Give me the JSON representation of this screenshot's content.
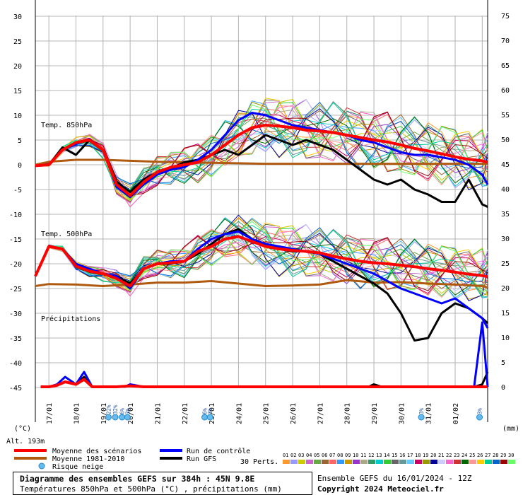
{
  "chart_data": {
    "type": "line",
    "title": "Diagramme des ensembles GEFS sur 384h : 45N 9.8E",
    "subtitle": "Températures 850hPa et 500hPa (°C) , précipitations (mm)",
    "run_info": "Ensemble GEFS du 16/01/2024 - 12Z",
    "copyright": "Copyright 2024 Meteociel.fr",
    "altitude": "Alt. 193m",
    "left_unit": "(°C)",
    "right_unit": "(mm)",
    "left_ticks": [
      "30",
      "25",
      "20",
      "15",
      "10",
      "5",
      "0",
      "-5",
      "-10",
      "-15",
      "-20",
      "-25",
      "-30",
      "-35",
      "-40",
      "-45"
    ],
    "right_ticks": [
      "75",
      "70",
      "65",
      "60",
      "55",
      "50",
      "45",
      "40",
      "35",
      "30",
      "25",
      "20",
      "15",
      "10",
      "5",
      "0"
    ],
    "x_ticks": [
      "17/01",
      "18/01",
      "19/01",
      "20/01",
      "21/01",
      "22/01",
      "23/01",
      "24/01",
      "25/01",
      "26/01",
      "27/01",
      "28/01",
      "29/01",
      "30/01",
      "31/01",
      "01/02"
    ],
    "panel_labels": [
      "Temp. 850hPa",
      "Temp. 500hPa",
      "Précipitations"
    ],
    "snow_risk": [
      {
        "x": 19.2,
        "label": "22%"
      },
      {
        "x": 19.45,
        "label": "32%"
      },
      {
        "x": 19.7,
        "label": "6%"
      },
      {
        "x": 19.9,
        "label": "3%"
      },
      {
        "x": 22.75,
        "label": "6%"
      },
      {
        "x": 22.95,
        "label": "3%"
      },
      {
        "x": 30.75,
        "label": "3%"
      },
      {
        "x": 32.9,
        "label": "3%"
      }
    ],
    "legend": {
      "mean_scenarios": "Moyenne des scénarios",
      "mean_1981_2010": "Moyenne 1981-2010",
      "control_run": "Run de contrôle",
      "gfs_run": "Run GFS",
      "snow_risk": "Risque neige",
      "perts_label": "30 Perts.",
      "pert_codes": [
        "01",
        "02",
        "03",
        "04",
        "05",
        "06",
        "07",
        "08",
        "09",
        "10",
        "11",
        "12",
        "13",
        "14",
        "15",
        "16",
        "17",
        "18",
        "19",
        "20",
        "21",
        "22",
        "23",
        "24",
        "25",
        "26",
        "27",
        "28",
        "29",
        "30"
      ]
    },
    "colors": {
      "mean": "#ff0000",
      "climatology": "#b05a10",
      "control": "#0000ff",
      "gfs": "#000000",
      "grid": "#b4b4b4",
      "perts": [
        "#ff9933",
        "#9999ff",
        "#cccc00",
        "#cc66cc",
        "#66aa44",
        "#996633",
        "#ff6666",
        "#3399ff",
        "#cc9900",
        "#9933cc",
        "#aaaa88",
        "#339966",
        "#00cccc",
        "#33cc33",
        "#666666",
        "#669999",
        "#66ccff",
        "#cc0066",
        "#999900",
        "#000099",
        "#ccccff",
        "#ff66cc",
        "#cc3333",
        "#006600",
        "#ff9999",
        "#ffcc00",
        "#00cc99",
        "#0066cc",
        "#990000",
        "#66ff66"
      ]
    },
    "xlim": [
      16.5,
      33.2
    ],
    "ylim": [
      -45,
      30
    ],
    "series": [
      {
        "name": "Moyenne des scénarios",
        "panel": "850",
        "x": [
          16.5,
          17,
          17.5,
          18,
          18.5,
          19,
          19.5,
          20,
          20.5,
          21,
          21.5,
          22,
          22.5,
          23,
          23.5,
          24,
          24.5,
          25,
          25.5,
          26,
          26.5,
          27,
          27.5,
          28,
          28.5,
          29,
          29.5,
          30,
          30.5,
          31,
          31.5,
          32,
          32.5,
          33,
          33.2
        ],
        "y": [
          -0.2,
          0,
          3,
          4.5,
          5,
          3,
          -4,
          -6.2,
          -3.5,
          -1.5,
          -0.5,
          0,
          0.5,
          2,
          4,
          6,
          7.5,
          8,
          7.8,
          7.5,
          7,
          6.8,
          6.5,
          6,
          5.5,
          5,
          4.6,
          4,
          3.3,
          2.8,
          2.2,
          1.6,
          1.1,
          0.8,
          0.5
        ]
      },
      {
        "name": "Moyenne 1981-2010",
        "panel": "850",
        "x": [
          16.5,
          17,
          18,
          19,
          20,
          21,
          22,
          23,
          24,
          25,
          26,
          27,
          28,
          29,
          30,
          31,
          32,
          33,
          33.2
        ],
        "y": [
          0,
          0.6,
          1,
          1,
          0.8,
          0.6,
          0.5,
          0.4,
          0.3,
          0.2,
          0.2,
          0.2,
          0.2,
          0.2,
          0.2,
          0.2,
          0.2,
          0.2,
          0.2
        ]
      },
      {
        "name": "Run de contrôle",
        "panel": "850",
        "x": [
          16.5,
          17,
          17.5,
          18,
          18.5,
          19,
          19.5,
          20,
          20.5,
          21,
          21.5,
          22,
          22.5,
          23,
          23.5,
          24,
          24.5,
          25,
          25.5,
          26,
          26.5,
          27,
          27.5,
          28,
          28.5,
          29,
          29.5,
          30,
          30.5,
          31,
          31.5,
          32,
          32.5,
          33,
          33.2
        ],
        "y": [
          -0.2,
          0,
          3,
          4.2,
          5.2,
          3,
          -4.5,
          -6.5,
          -4,
          -2,
          -1,
          -0.5,
          1,
          3,
          6,
          9,
          10.5,
          10,
          9,
          8,
          7.5,
          7,
          6.5,
          6,
          5,
          4.5,
          3.5,
          2.5,
          2,
          2,
          1.5,
          1,
          0,
          -2,
          -4
        ]
      },
      {
        "name": "Run GFS",
        "panel": "850",
        "x": [
          16.5,
          17,
          17.5,
          18,
          18.5,
          19,
          19.5,
          20,
          20.5,
          21,
          21.5,
          22,
          22.5,
          23,
          23.5,
          24,
          24.5,
          25,
          25.5,
          26,
          26.5,
          27,
          27.5,
          28,
          28.5,
          29,
          29.5,
          30,
          30.5,
          31,
          31.5,
          32,
          32.5,
          33,
          33.2
        ],
        "y": [
          -0.2,
          0,
          3.5,
          2,
          5,
          3,
          -3.5,
          -5.5,
          -3,
          -1.5,
          -0.8,
          0.5,
          1,
          2,
          3,
          2,
          4,
          6,
          5,
          4,
          5,
          4,
          3,
          1,
          -1,
          -3,
          -4,
          -3,
          -5,
          -6,
          -7.5,
          -7.5,
          -3,
          -8,
          -8.5
        ]
      },
      {
        "name": "Moyenne des scénarios",
        "panel": "500",
        "x": [
          16.5,
          17,
          17.5,
          18,
          18.5,
          19,
          19.5,
          20,
          20.5,
          21,
          21.5,
          22,
          22.5,
          23,
          23.5,
          24,
          24.5,
          25,
          25.5,
          26,
          26.5,
          27,
          27.5,
          28,
          28.5,
          29,
          29.5,
          30,
          30.5,
          31,
          31.5,
          32,
          32.5,
          33,
          33.2
        ],
        "y": [
          -22.5,
          -16.5,
          -17,
          -20.5,
          -21.5,
          -22,
          -23,
          -24.5,
          -21,
          -20,
          -19.8,
          -19.5,
          -17.5,
          -16.5,
          -15,
          -14.5,
          -15.5,
          -16.5,
          -17,
          -17.3,
          -17.5,
          -17.8,
          -18.5,
          -19,
          -19.5,
          -19.8,
          -20,
          -20.3,
          -20.6,
          -21,
          -21.3,
          -21.7,
          -22.1,
          -22.4,
          -22.6
        ]
      },
      {
        "name": "Moyenne 1981-2010",
        "panel": "500",
        "x": [
          16.5,
          17,
          18,
          19,
          20,
          21,
          22,
          23,
          24,
          25,
          26,
          27,
          28,
          29,
          30,
          31,
          32,
          33,
          33.2
        ],
        "y": [
          -24.5,
          -24.1,
          -24.2,
          -24.5,
          -24.2,
          -23.8,
          -23.8,
          -23.5,
          -24,
          -24.5,
          -24.4,
          -24.2,
          -23.3,
          -23.8,
          -23.7,
          -24,
          -24.2,
          -24.5,
          -24.8
        ]
      },
      {
        "name": "Run de contrôle",
        "panel": "500",
        "x": [
          16.5,
          17,
          17.5,
          18,
          18.5,
          19,
          19.5,
          20,
          20.5,
          21,
          21.5,
          22,
          22.5,
          23,
          23.5,
          24,
          24.5,
          25,
          25.5,
          26,
          26.5,
          27,
          27.5,
          28,
          28.5,
          29,
          29.5,
          30,
          30.5,
          31,
          31.5,
          32,
          32.5,
          33,
          33.2
        ],
        "y": [
          -22.5,
          -16.5,
          -17,
          -20,
          -21,
          -22,
          -22.5,
          -25,
          -21,
          -20,
          -19.5,
          -19.5,
          -17,
          -15,
          -14,
          -13.5,
          -15,
          -16,
          -16.5,
          -17,
          -17.5,
          -18,
          -19,
          -20,
          -21,
          -22,
          -23.5,
          -25,
          -26,
          -27,
          -28,
          -27,
          -29,
          -31,
          -33
        ]
      },
      {
        "name": "Run GFS",
        "panel": "500",
        "x": [
          16.5,
          17,
          17.5,
          18,
          18.5,
          19,
          19.5,
          20,
          20.5,
          21,
          21.5,
          22,
          22.5,
          23,
          23.5,
          24,
          24.5,
          25,
          25.5,
          26,
          26.5,
          27,
          27.5,
          28,
          28.5,
          29,
          29.5,
          30,
          30.5,
          31,
          31.5,
          32,
          32.5,
          33,
          33.2
        ],
        "y": [
          -22.5,
          -16.5,
          -17,
          -20,
          -21.5,
          -22,
          -22.5,
          -24,
          -21,
          -20,
          -20,
          -19.5,
          -18,
          -16,
          -14,
          -13,
          -15,
          -16.5,
          -17,
          -17.5,
          -17.5,
          -18,
          -19.5,
          -21,
          -22.5,
          -24,
          -26,
          -30,
          -35.5,
          -35,
          -30,
          -28,
          -29,
          -31,
          -32
        ]
      },
      {
        "name": "Moyenne des scénarios",
        "panel": "precip",
        "x": [
          16.7,
          17,
          17.3,
          17.6,
          18,
          18.3,
          18.6,
          19,
          19.5,
          19.8,
          20,
          20.5,
          21,
          22,
          23,
          24,
          25,
          26,
          27,
          28,
          29,
          30,
          31,
          32,
          33,
          33.2
        ],
        "y": [
          0,
          0,
          0.3,
          1,
          0.5,
          1.5,
          0,
          0,
          0,
          0.1,
          0.2,
          0,
          0,
          0,
          0,
          0,
          0,
          0,
          0,
          0,
          0,
          0,
          0,
          0,
          0,
          0
        ]
      },
      {
        "name": "Run de contrôle",
        "panel": "precip",
        "x": [
          16.7,
          17,
          17.3,
          17.6,
          18,
          18.3,
          18.6,
          19,
          19.5,
          19.8,
          20,
          20.5,
          21,
          22,
          23,
          24,
          25,
          26,
          27,
          28,
          29,
          30,
          31,
          32,
          32.7,
          33,
          33.2
        ],
        "y": [
          0,
          0,
          0.5,
          2,
          0.5,
          3,
          0,
          0,
          0,
          0,
          0.5,
          0,
          0,
          0,
          0,
          0,
          0,
          0,
          0,
          0,
          0,
          0,
          0,
          0,
          0,
          13,
          0
        ]
      },
      {
        "name": "Run GFS",
        "panel": "precip",
        "x": [
          16.7,
          17,
          17.3,
          17.6,
          18,
          18.3,
          18.6,
          19,
          19.5,
          19.8,
          20,
          20.5,
          21,
          22,
          23,
          24,
          25,
          26,
          27,
          28,
          28.8,
          29,
          29.3,
          30,
          31,
          32,
          32.7,
          33,
          33.2
        ],
        "y": [
          0,
          0,
          0.3,
          1,
          0.5,
          2,
          0,
          0,
          0,
          0,
          0.3,
          0,
          0,
          0,
          0,
          0,
          0,
          0,
          0,
          0,
          0,
          0.5,
          0,
          0,
          0,
          0,
          0,
          0.5,
          3
        ]
      }
    ]
  }
}
